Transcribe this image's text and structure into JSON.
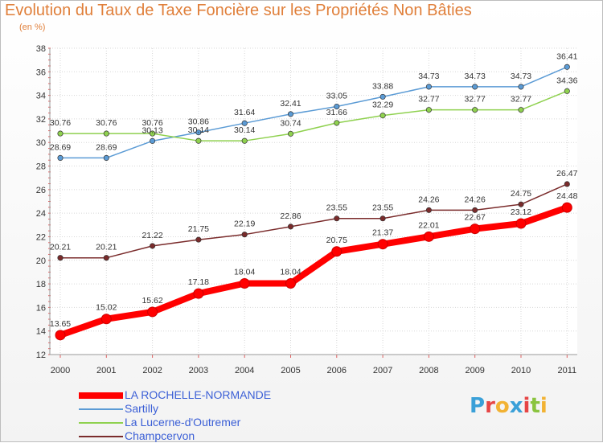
{
  "header": {
    "title": "Evolution du Taux de Taxe Foncière sur les Propriétés Non Bâties",
    "unit": "(en %)"
  },
  "logo": {
    "text": "Proxiti",
    "colors": [
      "#3aa0d8",
      "#e64545",
      "#f2b233",
      "#3aa0d8",
      "#e64545",
      "#8ac43f",
      "#f2b233"
    ]
  },
  "chart_data": {
    "type": "line",
    "title": "Evolution du Taux de Taxe Foncière sur les Propriétés Non Bâties",
    "ylabel": "(en %)",
    "xlabel": "",
    "x": [
      "2000",
      "2001",
      "2002",
      "2003",
      "2004",
      "2005",
      "2006",
      "2007",
      "2008",
      "2009",
      "2010",
      "2011"
    ],
    "ylim": [
      12,
      38
    ],
    "yticks": [
      12,
      14,
      16,
      18,
      20,
      22,
      24,
      26,
      28,
      30,
      32,
      34,
      36,
      38
    ],
    "grid": true,
    "legend": "bottom-left",
    "series": [
      {
        "name": "LA ROCHELLE-NORMANDE",
        "color": "#ff0000",
        "values": [
          13.65,
          15.02,
          15.62,
          17.18,
          18.04,
          18.04,
          20.75,
          21.37,
          22.01,
          22.67,
          23.12,
          24.48
        ],
        "labels": [
          "13.65",
          "15.02",
          "15.62",
          "17.18",
          "18.04",
          "18.04",
          "20.75",
          "21.37",
          "22.01",
          "22.67",
          "23.12",
          "24.48"
        ]
      },
      {
        "name": "Sartilly",
        "color": "#5b9bd5",
        "values": [
          28.69,
          28.69,
          30.13,
          30.86,
          31.64,
          32.41,
          33.05,
          33.88,
          34.73,
          34.73,
          34.73,
          36.41
        ],
        "labels": [
          "28.69",
          "28.69",
          "30.13",
          "30.86",
          "31.64",
          "32.41",
          "33.05",
          "33.88",
          "34.73",
          "34.73",
          "34.73",
          "36.41"
        ]
      },
      {
        "name": "La Lucerne-d'Outremer",
        "color": "#8fd14f",
        "values": [
          30.76,
          30.76,
          30.76,
          30.14,
          30.14,
          30.74,
          31.66,
          32.29,
          32.77,
          32.77,
          32.77,
          34.36
        ],
        "labels": [
          "30.76",
          "30.76",
          "30.76",
          "30.14",
          "30.14",
          "30.74",
          "31.66",
          "32.29",
          "32.77",
          "32.77",
          "32.77",
          "34.36"
        ]
      },
      {
        "name": "Champcervon",
        "color": "#7a2b2b",
        "values": [
          20.21,
          20.21,
          21.22,
          21.75,
          22.19,
          22.86,
          23.55,
          23.55,
          24.26,
          24.26,
          24.75,
          26.47
        ],
        "labels": [
          "20.21",
          "20.21",
          "21.22",
          "21.75",
          "22.19",
          "22.86",
          "23.55",
          "23.55",
          "24.26",
          "24.26",
          "24.75",
          "26.47"
        ]
      }
    ]
  }
}
